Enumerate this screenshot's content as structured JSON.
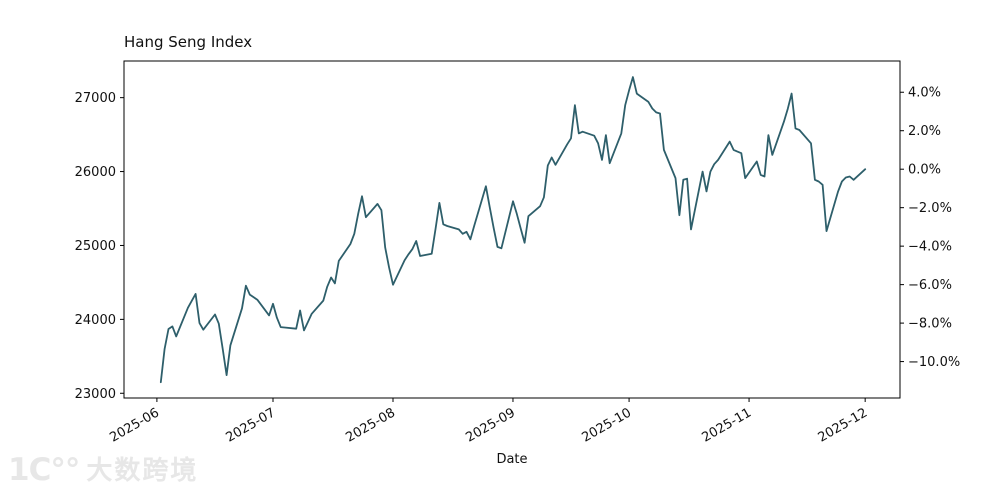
{
  "chart_data": {
    "type": "line",
    "title": "Hang Seng Index",
    "xlabel": "Date",
    "grid": false,
    "legend": "none",
    "line_color": "#2e5f6b",
    "axis_color": "#000000",
    "ylim": [
      22936,
      27496
    ],
    "xlim_days": [
      -8.5,
      192
    ],
    "y_left_ticks": [
      23000,
      24000,
      25000,
      26000,
      27000
    ],
    "right_axis_base_value": 26032,
    "y_right_ticks": [
      {
        "pct": 4,
        "label": "4.0%"
      },
      {
        "pct": 2,
        "label": "2.0%"
      },
      {
        "pct": 0,
        "label": "0.0%"
      },
      {
        "pct": -2,
        "label": "−2.0%"
      },
      {
        "pct": -4,
        "label": "−4.0%"
      },
      {
        "pct": -6,
        "label": "−6.0%"
      },
      {
        "pct": -8,
        "label": "−8.0%"
      },
      {
        "pct": -10,
        "label": "−10.0%"
      }
    ],
    "x_ticks": [
      {
        "date": "2025-06-01",
        "label": "2025-06"
      },
      {
        "date": "2025-07-01",
        "label": "2025-07"
      },
      {
        "date": "2025-08-01",
        "label": "2025-08"
      },
      {
        "date": "2025-09-01",
        "label": "2025-09"
      },
      {
        "date": "2025-10-01",
        "label": "2025-10"
      },
      {
        "date": "2025-11-01",
        "label": "2025-11"
      },
      {
        "date": "2025-12-01",
        "label": "2025-12"
      }
    ],
    "series": [
      {
        "name": "Hang Seng Index",
        "color": "#2e5f6b",
        "dates": [
          "2025-06-02",
          "2025-06-03",
          "2025-06-04",
          "2025-06-05",
          "2025-06-06",
          "2025-06-09",
          "2025-06-10",
          "2025-06-11",
          "2025-06-12",
          "2025-06-13",
          "2025-06-16",
          "2025-06-17",
          "2025-06-18",
          "2025-06-19",
          "2025-06-20",
          "2025-06-23",
          "2025-06-24",
          "2025-06-25",
          "2025-06-26",
          "2025-06-27",
          "2025-06-30",
          "2025-07-01",
          "2025-07-02",
          "2025-07-03",
          "2025-07-04",
          "2025-07-07",
          "2025-07-08",
          "2025-07-09",
          "2025-07-10",
          "2025-07-11",
          "2025-07-14",
          "2025-07-15",
          "2025-07-16",
          "2025-07-17",
          "2025-07-18",
          "2025-07-21",
          "2025-07-22",
          "2025-07-23",
          "2025-07-24",
          "2025-07-25",
          "2025-07-28",
          "2025-07-29",
          "2025-07-30",
          "2025-07-31",
          "2025-08-01",
          "2025-08-04",
          "2025-08-05",
          "2025-08-06",
          "2025-08-07",
          "2025-08-08",
          "2025-08-11",
          "2025-08-12",
          "2025-08-13",
          "2025-08-14",
          "2025-08-15",
          "2025-08-18",
          "2025-08-19",
          "2025-08-20",
          "2025-08-21",
          "2025-08-22",
          "2025-08-25",
          "2025-08-26",
          "2025-08-27",
          "2025-08-28",
          "2025-08-29",
          "2025-09-01",
          "2025-09-02",
          "2025-09-03",
          "2025-09-04",
          "2025-09-05",
          "2025-09-08",
          "2025-09-09",
          "2025-09-10",
          "2025-09-11",
          "2025-09-12",
          "2025-09-15",
          "2025-09-16",
          "2025-09-17",
          "2025-09-18",
          "2025-09-19",
          "2025-09-22",
          "2025-09-23",
          "2025-09-24",
          "2025-09-25",
          "2025-09-26",
          "2025-09-29",
          "2025-09-30",
          "2025-10-01",
          "2025-10-02",
          "2025-10-03",
          "2025-10-06",
          "2025-10-07",
          "2025-10-08",
          "2025-10-09",
          "2025-10-10",
          "2025-10-13",
          "2025-10-14",
          "2025-10-15",
          "2025-10-16",
          "2025-10-17",
          "2025-10-20",
          "2025-10-21",
          "2025-10-22",
          "2025-10-23",
          "2025-10-24",
          "2025-10-27",
          "2025-10-28",
          "2025-10-29",
          "2025-10-30",
          "2025-10-31",
          "2025-11-03",
          "2025-11-04",
          "2025-11-05",
          "2025-11-06",
          "2025-11-07",
          "2025-11-10",
          "2025-11-11",
          "2025-11-12",
          "2025-11-13",
          "2025-11-14",
          "2025-11-17",
          "2025-11-18",
          "2025-11-19",
          "2025-11-20",
          "2025-11-21",
          "2025-11-24",
          "2025-11-25",
          "2025-11-26",
          "2025-11-27",
          "2025-11-28",
          "2025-12-01"
        ],
        "values": [
          23150,
          23600,
          23870,
          23905,
          23770,
          24156,
          24250,
          24344,
          23950,
          23860,
          24066,
          23941,
          23600,
          23246,
          23649,
          24150,
          24456,
          24335,
          24299,
          24264,
          24053,
          24210,
          24022,
          23896,
          23890,
          23874,
          24120,
          23851,
          23960,
          24075,
          24254,
          24440,
          24567,
          24487,
          24791,
          25020,
          25158,
          25430,
          25665,
          25383,
          25562,
          25477,
          24971,
          24700,
          24469,
          24800,
          24881,
          24950,
          25060,
          24858,
          24889,
          25230,
          25576,
          25286,
          25263,
          25218,
          25158,
          25185,
          25083,
          25270,
          25800,
          25520,
          25240,
          24980,
          24962,
          25598,
          25428,
          25230,
          25038,
          25396,
          25531,
          25652,
          26082,
          26190,
          26091,
          26369,
          26450,
          26898,
          26517,
          26539,
          26485,
          26382,
          26158,
          26494,
          26113,
          26517,
          26898,
          27100,
          27278,
          27055,
          26942,
          26853,
          26800,
          26786,
          26293,
          25911,
          25409,
          25889,
          25903,
          25218,
          26000,
          25732,
          26000,
          26100,
          26158,
          26405,
          26293,
          26270,
          26248,
          25911,
          26136,
          25955,
          25933,
          26494,
          26225,
          26674,
          26850,
          27055,
          26584,
          26562,
          26382,
          25889,
          25866,
          25821,
          25195,
          25732,
          25866,
          25920,
          25933,
          25889,
          26032
        ]
      }
    ]
  },
  "watermark": {
    "logo": "1Ϲ°°",
    "text": "大数跨境",
    "color": "#e7e7e7"
  }
}
